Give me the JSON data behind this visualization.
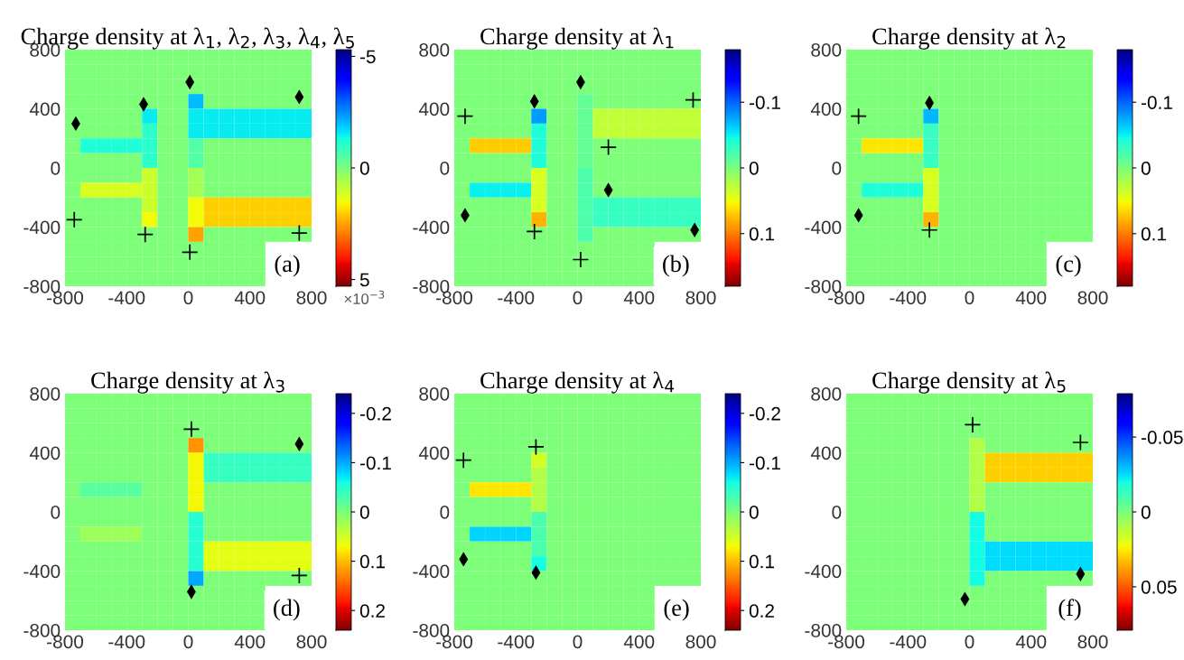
{
  "chart_data": [
    {
      "type": "heatmap",
      "title": "Charge density at λ$_{1}$, λ$_{2}$, λ$_{3}$, λ$_{4}$, λ$_{5}$",
      "clabel": "×10$^{−3}$",
      "x": [
        -750,
        -650,
        -550,
        -450,
        -350,
        -250,
        -150,
        -50,
        50,
        150,
        250,
        350,
        450,
        550,
        650,
        750
      ],
      "y": [
        750,
        650,
        550,
        450,
        350,
        250,
        150,
        50,
        -50,
        -150,
        -250,
        -350,
        -450,
        -550,
        -650,
        -750
      ],
      "cells": [
        [
          0,
          0,
          0,
          0,
          0,
          0,
          0,
          0,
          0,
          0,
          0,
          0,
          0,
          0,
          0,
          0
        ],
        [
          0,
          0,
          0,
          0,
          0,
          0,
          0,
          0,
          0,
          0,
          0,
          0,
          0,
          0,
          0,
          0
        ],
        [
          0,
          0,
          0,
          0,
          0,
          0,
          0,
          0,
          0,
          0,
          0,
          0,
          0,
          0,
          0,
          0
        ],
        [
          0,
          0,
          0,
          0,
          0,
          0,
          0,
          0,
          -2,
          0,
          0,
          0,
          0,
          0,
          0,
          0
        ],
        [
          0,
          0,
          0,
          0,
          0,
          -1.5,
          0,
          0,
          -1.5,
          -1.5,
          -1.5,
          -1.5,
          -1.5,
          -1.5,
          -1.5,
          -1.5
        ],
        [
          0,
          0,
          0,
          0,
          0,
          -1,
          0,
          0,
          -1.5,
          -1.5,
          -1.5,
          -1.5,
          -1.5,
          -1.5,
          -1.5,
          -1.5
        ],
        [
          0,
          -1.2,
          -1.2,
          -1.2,
          -1.2,
          -1,
          0,
          0,
          -0.5,
          0,
          0,
          0,
          0,
          0,
          0,
          0
        ],
        [
          0,
          0,
          0,
          0,
          0,
          -1,
          0,
          0,
          -0.5,
          0,
          0,
          0,
          0,
          0,
          0,
          0
        ],
        [
          0,
          0,
          0,
          0,
          0,
          1,
          0,
          0,
          0.5,
          0,
          0,
          0,
          0,
          0,
          0,
          0
        ],
        [
          0,
          1.2,
          1.2,
          1.2,
          1.2,
          1,
          0,
          0,
          0.5,
          0,
          0,
          0,
          0,
          0,
          0,
          0
        ],
        [
          0,
          0,
          0,
          0,
          0,
          1,
          0,
          0,
          1.5,
          2,
          2,
          2,
          2,
          2,
          2,
          2
        ],
        [
          0,
          0,
          0,
          0,
          0,
          1.5,
          0,
          0,
          1.5,
          2,
          2,
          2,
          2,
          2,
          2,
          2
        ],
        [
          0,
          0,
          0,
          0,
          0,
          0,
          0,
          0,
          2.5,
          0,
          0,
          0,
          0,
          0,
          0,
          0
        ],
        [
          0,
          0,
          0,
          0,
          0,
          0,
          0,
          0,
          0,
          0,
          0,
          0,
          0,
          null,
          null,
          null
        ],
        [
          0,
          0,
          0,
          0,
          0,
          0,
          0,
          0,
          0,
          0,
          0,
          0,
          0,
          null,
          null,
          null
        ],
        [
          0,
          0,
          0,
          0,
          0,
          0,
          0,
          0,
          0,
          0,
          0,
          0,
          0,
          null,
          null,
          null
        ]
      ],
      "clim": [
        5.3,
        -5.3
      ],
      "cticks": [
        -5,
        0,
        5
      ],
      "xlim": [
        -800,
        800
      ],
      "ylim": [
        -800,
        800
      ],
      "xticks": [
        -800,
        -400,
        0,
        400,
        800
      ],
      "yticks": [
        -800,
        -400,
        0,
        400,
        800
      ],
      "annotations": [
        "(a)"
      ],
      "series": [
        {
          "type": "scatter",
          "marker": "cross",
          "color": "#000000",
          "x": [
            -740,
            -280,
            10,
            720
          ],
          "values": [
            -350,
            -450,
            -570,
            -440
          ]
        },
        {
          "type": "scatter",
          "marker": "diamond",
          "color": "#000000",
          "x": [
            -730,
            -290,
            10,
            720
          ],
          "values": [
            300,
            430,
            580,
            480
          ]
        }
      ]
    },
    {
      "type": "heatmap",
      "title": "Charge density at λ$_{1}$",
      "x": [
        -750,
        -650,
        -550,
        -450,
        -350,
        -250,
        -150,
        -50,
        50,
        150,
        250,
        350,
        450,
        550,
        650,
        750
      ],
      "y": [
        750,
        650,
        550,
        450,
        350,
        250,
        150,
        50,
        -50,
        -150,
        -250,
        -350,
        -450,
        -550,
        -650,
        -750
      ],
      "cells": [
        [
          0,
          0,
          0,
          0,
          0,
          0,
          0,
          0,
          0,
          0,
          0,
          0,
          0,
          0,
          0,
          0
        ],
        [
          0,
          0,
          0,
          0,
          0,
          0,
          0,
          0,
          0,
          0,
          0,
          0,
          0,
          0,
          0,
          0
        ],
        [
          0,
          0,
          0,
          0,
          0,
          0,
          0,
          0,
          0,
          0,
          0,
          0,
          0,
          0,
          0,
          0
        ],
        [
          0,
          0,
          0,
          0,
          0,
          0,
          0,
          0,
          -0.01,
          0,
          0,
          0,
          0,
          0,
          0,
          0
        ],
        [
          0,
          0,
          0,
          0,
          0,
          -0.08,
          0,
          0,
          -0.01,
          0.03,
          0.03,
          0.03,
          0.03,
          0.03,
          0.03,
          0.03
        ],
        [
          0,
          0,
          0,
          0,
          0,
          -0.04,
          0,
          0,
          -0.01,
          0.03,
          0.03,
          0.03,
          0.03,
          0.03,
          0.03,
          0.03
        ],
        [
          0,
          0.07,
          0.07,
          0.07,
          0.07,
          -0.04,
          0,
          0,
          -0.01,
          0,
          0,
          0,
          0,
          0,
          0,
          0
        ],
        [
          0,
          0,
          0,
          0,
          0,
          -0.04,
          0,
          0,
          -0.01,
          0,
          0,
          0,
          0,
          0,
          0,
          0
        ],
        [
          0,
          0,
          0,
          0,
          0,
          0.04,
          0,
          0,
          -0.02,
          0,
          0,
          0,
          0,
          0,
          0,
          0
        ],
        [
          0,
          -0.05,
          -0.05,
          -0.05,
          -0.05,
          0.04,
          0,
          0,
          -0.02,
          0,
          0,
          0,
          0,
          0,
          0,
          0
        ],
        [
          0,
          0,
          0,
          0,
          0,
          0.04,
          0,
          0,
          -0.02,
          -0.03,
          -0.03,
          -0.03,
          -0.03,
          -0.03,
          -0.03,
          -0.03
        ],
        [
          0,
          0,
          0,
          0,
          0,
          0.08,
          0,
          0,
          -0.02,
          -0.03,
          -0.03,
          -0.03,
          -0.03,
          -0.03,
          -0.03,
          -0.03
        ],
        [
          0,
          0,
          0,
          0,
          0,
          0,
          0,
          0,
          -0.02,
          0,
          0,
          0,
          0,
          0,
          0,
          0
        ],
        [
          0,
          0,
          0,
          0,
          0,
          0,
          0,
          0,
          0,
          0,
          0,
          0,
          0,
          null,
          null,
          null
        ],
        [
          0,
          0,
          0,
          0,
          0,
          0,
          0,
          0,
          0,
          0,
          0,
          0,
          0,
          null,
          null,
          null
        ],
        [
          0,
          0,
          0,
          0,
          0,
          0,
          0,
          0,
          0,
          0,
          0,
          0,
          0,
          null,
          null,
          null
        ]
      ],
      "clim": [
        0.18,
        -0.18
      ],
      "cticks": [
        -0.1,
        0,
        0.1
      ],
      "xlim": [
        -800,
        800
      ],
      "ylim": [
        -800,
        800
      ],
      "xticks": [
        -800,
        -400,
        0,
        400,
        800
      ],
      "yticks": [
        -800,
        -400,
        0,
        400,
        800
      ],
      "annotations": [
        "(b)"
      ],
      "series": [
        {
          "type": "scatter",
          "marker": "cross",
          "color": "#000000",
          "x": [
            -730,
            750,
            200,
            -280,
            20
          ],
          "values": [
            350,
            460,
            140,
            -430,
            -620
          ]
        },
        {
          "type": "scatter",
          "marker": "diamond",
          "color": "#000000",
          "x": [
            -280,
            20,
            200,
            -730,
            760
          ],
          "values": [
            450,
            580,
            -150,
            -320,
            -420
          ]
        }
      ]
    },
    {
      "type": "heatmap",
      "title": "Charge density at λ$_{2}$",
      "x": [
        -750,
        -650,
        -550,
        -450,
        -350,
        -250,
        -150,
        -50,
        50,
        150,
        250,
        350,
        450,
        550,
        650,
        750
      ],
      "y": [
        750,
        650,
        550,
        450,
        350,
        250,
        150,
        50,
        -50,
        -150,
        -250,
        -350,
        -450,
        -550,
        -650,
        -750
      ],
      "cells": [
        [
          0,
          0,
          0,
          0,
          0,
          0,
          0,
          0,
          0,
          0,
          0,
          0,
          0,
          0,
          0,
          0
        ],
        [
          0,
          0,
          0,
          0,
          0,
          0,
          0,
          0,
          0,
          0,
          0,
          0,
          0,
          0,
          0,
          0
        ],
        [
          0,
          0,
          0,
          0,
          0,
          0,
          0,
          0,
          0,
          0,
          0,
          0,
          0,
          0,
          0,
          0
        ],
        [
          0,
          0,
          0,
          0,
          0,
          0,
          0,
          0,
          0,
          0,
          0,
          0,
          0,
          0,
          0,
          0
        ],
        [
          0,
          0,
          0,
          0,
          0,
          -0.07,
          0,
          0,
          0,
          0,
          0,
          0,
          0,
          0,
          0,
          0
        ],
        [
          0,
          0,
          0,
          0,
          0,
          -0.03,
          0,
          0,
          0,
          0,
          0,
          0,
          0,
          0,
          0,
          0
        ],
        [
          0,
          0.06,
          0.06,
          0.06,
          0.06,
          -0.03,
          0,
          0,
          0,
          0,
          0,
          0,
          0,
          0,
          0,
          0
        ],
        [
          0,
          0,
          0,
          0,
          0,
          -0.03,
          0,
          0,
          0,
          0,
          0,
          0,
          0,
          0,
          0,
          0
        ],
        [
          0,
          0,
          0,
          0,
          0,
          0.04,
          0,
          0,
          0,
          0,
          0,
          0,
          0,
          0,
          0,
          0
        ],
        [
          0,
          -0.04,
          -0.04,
          -0.04,
          -0.04,
          0.04,
          0,
          0,
          0,
          0,
          0,
          0,
          0,
          0,
          0,
          0
        ],
        [
          0,
          0,
          0,
          0,
          0,
          0.04,
          0,
          0,
          0,
          0,
          0,
          0,
          0,
          0,
          0,
          0
        ],
        [
          0,
          0,
          0,
          0,
          0,
          0.08,
          0,
          0,
          0,
          0,
          0,
          0,
          0,
          0,
          0,
          0
        ],
        [
          0,
          0,
          0,
          0,
          0,
          0,
          0,
          0,
          0,
          0,
          0,
          0,
          0,
          0,
          0,
          0
        ],
        [
          0,
          0,
          0,
          0,
          0,
          0,
          0,
          0,
          0,
          0,
          0,
          0,
          0,
          null,
          null,
          null
        ],
        [
          0,
          0,
          0,
          0,
          0,
          0,
          0,
          0,
          0,
          0,
          0,
          0,
          0,
          null,
          null,
          null
        ],
        [
          0,
          0,
          0,
          0,
          0,
          0,
          0,
          0,
          0,
          0,
          0,
          0,
          0,
          null,
          null,
          null
        ]
      ],
      "clim": [
        0.18,
        -0.18
      ],
      "cticks": [
        -0.1,
        0,
        0.1
      ],
      "xlim": [
        -800,
        800
      ],
      "ylim": [
        -800,
        800
      ],
      "xticks": [
        -800,
        -400,
        0,
        400,
        800
      ],
      "yticks": [
        -800,
        -400,
        0,
        400,
        800
      ],
      "annotations": [
        "(c)"
      ],
      "series": [
        {
          "type": "scatter",
          "marker": "cross",
          "color": "#000000",
          "x": [
            -720,
            -260
          ],
          "values": [
            350,
            -420
          ]
        },
        {
          "type": "scatter",
          "marker": "diamond",
          "color": "#000000",
          "x": [
            -260,
            -720
          ],
          "values": [
            440,
            -320
          ]
        }
      ]
    },
    {
      "type": "heatmap",
      "title": "Charge density at λ$_{3}$",
      "x": [
        -750,
        -650,
        -550,
        -450,
        -350,
        -250,
        -150,
        -50,
        50,
        150,
        250,
        350,
        450,
        550,
        650,
        750
      ],
      "y": [
        750,
        650,
        550,
        450,
        350,
        250,
        150,
        50,
        -50,
        -150,
        -250,
        -350,
        -450,
        -550,
        -650,
        -750
      ],
      "cells": [
        [
          0,
          0,
          0,
          0,
          0,
          0,
          0,
          0,
          0,
          0,
          0,
          0,
          0,
          0,
          0,
          0
        ],
        [
          0,
          0,
          0,
          0,
          0,
          0,
          0,
          0,
          0,
          0,
          0,
          0,
          0,
          0,
          0,
          0
        ],
        [
          0,
          0,
          0,
          0,
          0,
          0,
          0,
          0,
          0,
          0,
          0,
          0,
          0,
          0,
          0,
          0
        ],
        [
          0,
          0,
          0,
          0,
          0,
          0,
          0,
          0,
          0.12,
          0,
          0,
          0,
          0,
          0,
          0,
          0
        ],
        [
          0,
          0,
          0,
          0,
          0,
          0,
          0,
          0,
          0.07,
          -0.04,
          -0.04,
          -0.04,
          -0.04,
          -0.04,
          -0.04,
          -0.04
        ],
        [
          0,
          0,
          0,
          0,
          0,
          0,
          0,
          0,
          0.07,
          -0.04,
          -0.04,
          -0.04,
          -0.04,
          -0.04,
          -0.04,
          -0.04
        ],
        [
          0,
          -0.02,
          -0.02,
          -0.02,
          -0.02,
          0,
          0,
          0,
          0.07,
          0,
          0,
          0,
          0,
          0,
          0,
          0
        ],
        [
          0,
          0,
          0,
          0,
          0,
          0,
          0,
          0,
          0.07,
          0,
          0,
          0,
          0,
          0,
          0,
          0
        ],
        [
          0,
          0,
          0,
          0,
          0,
          0,
          0,
          0,
          -0.05,
          0,
          0,
          0,
          0,
          0,
          0,
          0
        ],
        [
          0,
          0.02,
          0.02,
          0.02,
          0.02,
          0,
          0,
          0,
          -0.05,
          0,
          0,
          0,
          0,
          0,
          0,
          0
        ],
        [
          0,
          0,
          0,
          0,
          0,
          0,
          0,
          0,
          -0.05,
          0.06,
          0.06,
          0.06,
          0.06,
          0.06,
          0.06,
          0.06
        ],
        [
          0,
          0,
          0,
          0,
          0,
          0,
          0,
          0,
          -0.05,
          0.06,
          0.06,
          0.06,
          0.06,
          0.06,
          0.06,
          0.06
        ],
        [
          0,
          0,
          0,
          0,
          0,
          0,
          0,
          0,
          -0.1,
          0,
          0,
          0,
          0,
          0,
          0,
          0
        ],
        [
          0,
          0,
          0,
          0,
          0,
          0,
          0,
          0,
          0,
          0,
          0,
          0,
          0,
          null,
          null,
          null
        ],
        [
          0,
          0,
          0,
          0,
          0,
          0,
          0,
          0,
          0,
          0,
          0,
          0,
          0,
          null,
          null,
          null
        ],
        [
          0,
          0,
          0,
          0,
          0,
          0,
          0,
          0,
          0,
          0,
          0,
          0,
          0,
          null,
          null,
          null
        ]
      ],
      "clim": [
        0.24,
        -0.24
      ],
      "cticks": [
        -0.2,
        -0.1,
        0,
        0.1,
        0.2
      ],
      "xlim": [
        -800,
        800
      ],
      "ylim": [
        -800,
        800
      ],
      "xticks": [
        -800,
        -400,
        0,
        400,
        800
      ],
      "yticks": [
        -800,
        -400,
        0,
        400,
        800
      ],
      "annotations": [
        "(d)"
      ],
      "series": [
        {
          "type": "scatter",
          "marker": "cross",
          "color": "#000000",
          "x": [
            20,
            720
          ],
          "values": [
            560,
            -430
          ]
        },
        {
          "type": "scatter",
          "marker": "diamond",
          "color": "#000000",
          "x": [
            720,
            20
          ],
          "values": [
            460,
            -540
          ]
        }
      ]
    },
    {
      "type": "heatmap",
      "title": "Charge density at λ$_{4}$",
      "x": [
        -750,
        -650,
        -550,
        -450,
        -350,
        -250,
        -150,
        -50,
        50,
        150,
        250,
        350,
        450,
        550,
        650,
        750
      ],
      "y": [
        750,
        650,
        550,
        450,
        350,
        250,
        150,
        50,
        -50,
        -150,
        -250,
        -350,
        -450,
        -550,
        -650,
        -750
      ],
      "cells": [
        [
          0,
          0,
          0,
          0,
          0,
          0,
          0,
          0,
          0,
          0,
          0,
          0,
          0,
          0,
          0,
          0
        ],
        [
          0,
          0,
          0,
          0,
          0,
          0,
          0,
          0,
          0,
          0,
          0,
          0,
          0,
          0,
          0,
          0
        ],
        [
          0,
          0,
          0,
          0,
          0,
          0,
          0,
          0,
          0,
          0,
          0,
          0,
          0,
          0,
          0,
          0
        ],
        [
          0,
          0,
          0,
          0,
          0,
          0,
          0,
          0,
          0,
          0,
          0,
          0,
          0,
          0,
          0,
          0
        ],
        [
          0,
          0,
          0,
          0,
          0,
          0.05,
          0,
          0,
          0,
          0,
          0,
          0,
          0,
          0,
          0,
          0
        ],
        [
          0,
          0,
          0,
          0,
          0,
          0.03,
          0,
          0,
          0,
          0,
          0,
          0,
          0,
          0,
          0,
          0
        ],
        [
          0,
          0.08,
          0.08,
          0.08,
          0.08,
          0.03,
          0,
          0,
          0,
          0,
          0,
          0,
          0,
          0,
          0,
          0
        ],
        [
          0,
          0,
          0,
          0,
          0,
          0.03,
          0,
          0,
          0,
          0,
          0,
          0,
          0,
          0,
          0,
          0
        ],
        [
          0,
          0,
          0,
          0,
          0,
          -0.03,
          0,
          0,
          0,
          0,
          0,
          0,
          0,
          0,
          0,
          0
        ],
        [
          0,
          -0.08,
          -0.08,
          -0.08,
          -0.08,
          -0.03,
          0,
          0,
          0,
          0,
          0,
          0,
          0,
          0,
          0,
          0
        ],
        [
          0,
          0,
          0,
          0,
          0,
          -0.03,
          0,
          0,
          0,
          0,
          0,
          0,
          0,
          0,
          0,
          0
        ],
        [
          0,
          0,
          0,
          0,
          0,
          -0.06,
          0,
          0,
          0,
          0,
          0,
          0,
          0,
          0,
          0,
          0
        ],
        [
          0,
          0,
          0,
          0,
          0,
          0,
          0,
          0,
          0,
          0,
          0,
          0,
          0,
          0,
          0,
          0
        ],
        [
          0,
          0,
          0,
          0,
          0,
          0,
          0,
          0,
          0,
          0,
          0,
          0,
          0,
          null,
          null,
          null
        ],
        [
          0,
          0,
          0,
          0,
          0,
          0,
          0,
          0,
          0,
          0,
          0,
          0,
          0,
          null,
          null,
          null
        ],
        [
          0,
          0,
          0,
          0,
          0,
          0,
          0,
          0,
          0,
          0,
          0,
          0,
          0,
          null,
          null,
          null
        ]
      ],
      "clim": [
        0.24,
        -0.24
      ],
      "cticks": [
        -0.2,
        -0.1,
        0,
        0.1,
        0.2
      ],
      "xlim": [
        -800,
        800
      ],
      "ylim": [
        -800,
        800
      ],
      "xticks": [
        -800,
        -400,
        0,
        400,
        800
      ],
      "yticks": [
        -800,
        -400,
        0,
        400,
        800
      ],
      "annotations": [
        "(e)"
      ],
      "series": [
        {
          "type": "scatter",
          "marker": "cross",
          "color": "#000000",
          "x": [
            -740,
            -270
          ],
          "values": [
            350,
            440
          ]
        },
        {
          "type": "scatter",
          "marker": "diamond",
          "color": "#000000",
          "x": [
            -740,
            -270
          ],
          "values": [
            -320,
            -410
          ]
        }
      ]
    },
    {
      "type": "heatmap",
      "title": "Charge density at λ$_{5}$",
      "x": [
        -750,
        -650,
        -550,
        -450,
        -350,
        -250,
        -150,
        -50,
        50,
        150,
        250,
        350,
        450,
        550,
        650,
        750
      ],
      "y": [
        750,
        650,
        550,
        450,
        350,
        250,
        150,
        50,
        -50,
        -150,
        -250,
        -350,
        -450,
        -550,
        -650,
        -750
      ],
      "cells": [
        [
          0,
          0,
          0,
          0,
          0,
          0,
          0,
          0,
          0,
          0,
          0,
          0,
          0,
          0,
          0,
          0
        ],
        [
          0,
          0,
          0,
          0,
          0,
          0,
          0,
          0,
          0,
          0,
          0,
          0,
          0,
          0,
          0,
          0
        ],
        [
          0,
          0,
          0,
          0,
          0,
          0,
          0,
          0,
          0,
          0,
          0,
          0,
          0,
          0,
          0,
          0
        ],
        [
          0,
          0,
          0,
          0,
          0,
          0,
          0,
          0,
          0.01,
          0,
          0,
          0,
          0,
          0,
          0,
          0
        ],
        [
          0,
          0,
          0,
          0,
          0,
          0,
          0,
          0,
          0.01,
          0.03,
          0.03,
          0.03,
          0.03,
          0.03,
          0.03,
          0.03
        ],
        [
          0,
          0,
          0,
          0,
          0,
          0,
          0,
          0,
          0.01,
          0.03,
          0.03,
          0.03,
          0.03,
          0.03,
          0.03,
          0.03
        ],
        [
          0,
          0,
          0,
          0,
          0,
          0,
          0,
          0,
          0.01,
          0,
          0,
          0,
          0,
          0,
          0,
          0
        ],
        [
          0,
          0,
          0,
          0,
          0,
          0,
          0,
          0,
          0.01,
          0,
          0,
          0,
          0,
          0,
          0,
          0
        ],
        [
          0,
          0,
          0,
          0,
          0,
          0,
          0,
          0,
          -0.02,
          0,
          0,
          0,
          0,
          0,
          0,
          0
        ],
        [
          0,
          0,
          0,
          0,
          0,
          0,
          0,
          0,
          -0.02,
          0,
          0,
          0,
          0,
          0,
          0,
          0
        ],
        [
          0,
          0,
          0,
          0,
          0,
          0,
          0,
          0,
          -0.02,
          -0.025,
          -0.025,
          -0.025,
          -0.025,
          -0.025,
          -0.025,
          -0.025
        ],
        [
          0,
          0,
          0,
          0,
          0,
          0,
          0,
          0,
          -0.02,
          -0.025,
          -0.025,
          -0.025,
          -0.025,
          -0.025,
          -0.025,
          -0.025
        ],
        [
          0,
          0,
          0,
          0,
          0,
          0,
          0,
          0,
          -0.02,
          0,
          0,
          0,
          0,
          0,
          0,
          0
        ],
        [
          0,
          0,
          0,
          0,
          0,
          0,
          0,
          0,
          0,
          0,
          0,
          0,
          0,
          null,
          null,
          null
        ],
        [
          0,
          0,
          0,
          0,
          0,
          0,
          0,
          0,
          0,
          0,
          0,
          0,
          0,
          null,
          null,
          null
        ],
        [
          0,
          0,
          0,
          0,
          0,
          0,
          0,
          0,
          0,
          0,
          0,
          0,
          0,
          null,
          null,
          null
        ]
      ],
      "clim": [
        0.079,
        -0.079
      ],
      "cticks": [
        -0.05,
        0,
        0.05
      ],
      "xlim": [
        -800,
        800
      ],
      "ylim": [
        -800,
        800
      ],
      "xticks": [
        -800,
        -400,
        0,
        400,
        800
      ],
      "yticks": [
        -800,
        -400,
        0,
        400,
        800
      ],
      "annotations": [
        "(f)"
      ],
      "series": [
        {
          "type": "scatter",
          "marker": "cross",
          "color": "#000000",
          "x": [
            20,
            720
          ],
          "values": [
            590,
            470
          ]
        },
        {
          "type": "scatter",
          "marker": "diamond",
          "color": "#000000",
          "x": [
            -30,
            720
          ],
          "values": [
            -590,
            -420
          ]
        }
      ]
    }
  ]
}
